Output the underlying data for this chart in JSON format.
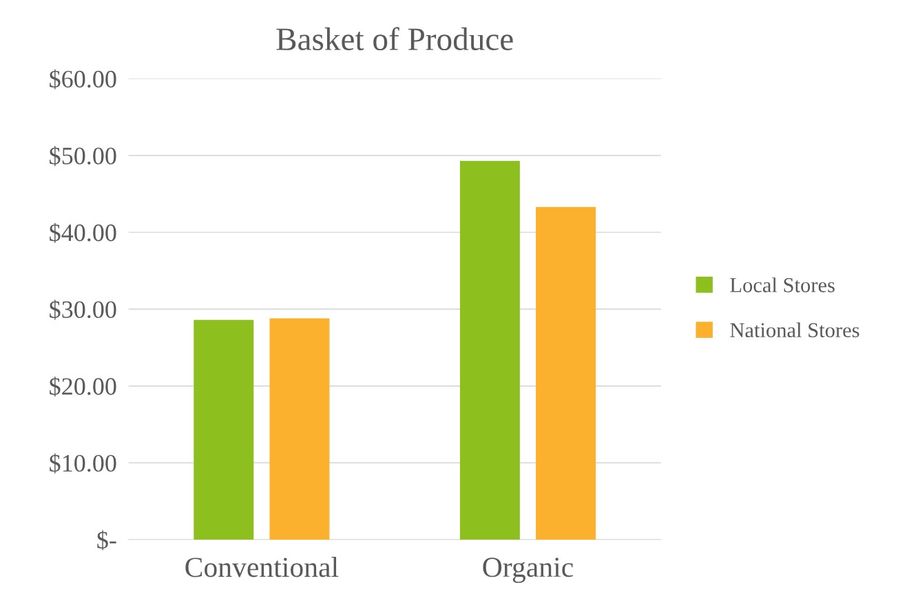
{
  "chart_data": {
    "type": "bar",
    "title": "Basket of Produce",
    "categories": [
      "Conventional",
      "Organic"
    ],
    "series": [
      {
        "name": "Local Stores",
        "color": "#8dc01e",
        "values": [
          28.6,
          49.3
        ]
      },
      {
        "name": "National Stores",
        "color": "#fbb02e",
        "values": [
          28.8,
          43.3
        ]
      }
    ],
    "ylim": [
      0,
      60
    ],
    "yticks": [
      {
        "value": 0,
        "label": "$-"
      },
      {
        "value": 10,
        "label": "$10.00"
      },
      {
        "value": 20,
        "label": "$20.00"
      },
      {
        "value": 30,
        "label": "$30.00"
      },
      {
        "value": 40,
        "label": "$40.00"
      },
      {
        "value": 50,
        "label": "$50.00"
      },
      {
        "value": 60,
        "label": "$60.00"
      }
    ],
    "grid": "y",
    "legend": "right"
  }
}
